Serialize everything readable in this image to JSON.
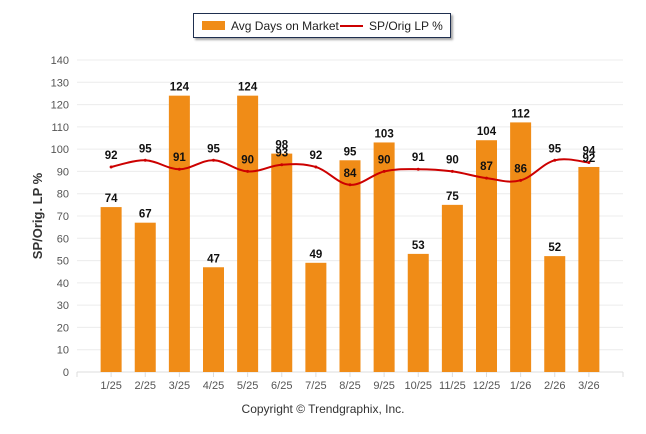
{
  "chart_data": {
    "type": "bar",
    "title": "",
    "xlabel": "",
    "ylabel": "SP/Orig. LP %",
    "ylim": [
      0,
      140
    ],
    "yticks": [
      0,
      10,
      20,
      30,
      40,
      50,
      60,
      70,
      80,
      90,
      100,
      110,
      120,
      130,
      140
    ],
    "grid": true,
    "legend_position": "top-center",
    "categories": [
      "1/25",
      "2/25",
      "3/25",
      "4/25",
      "5/25",
      "6/25",
      "7/25",
      "8/25",
      "9/25",
      "10/25",
      "11/25",
      "12/25",
      "1/26",
      "2/26",
      "3/26"
    ],
    "series": [
      {
        "name": "Avg Days on Market",
        "type": "bar",
        "color": "#f08c17",
        "values": [
          74,
          67,
          124,
          47,
          124,
          98,
          49,
          95,
          103,
          53,
          75,
          104,
          112,
          52,
          92
        ]
      },
      {
        "name": "SP/Orig LP %",
        "type": "line",
        "color": "#cc0000",
        "values": [
          92,
          95,
          91,
          95,
          90,
          93,
          92,
          84,
          90,
          91,
          90,
          87,
          86,
          95,
          94
        ]
      }
    ]
  },
  "footer": {
    "copyright": "Copyright © Trendgraphix, Inc."
  }
}
